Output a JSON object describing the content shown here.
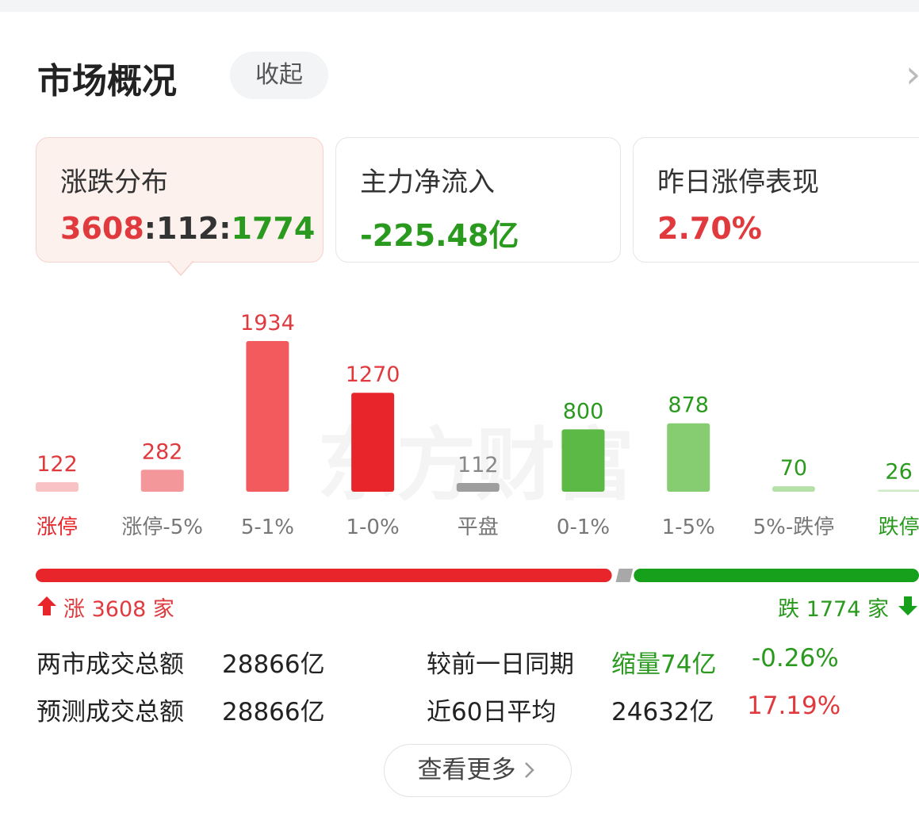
{
  "header": {
    "title": "市场概况",
    "button": "收起",
    "chevron": "›"
  },
  "cards": [
    {
      "title": "涨跌分布",
      "separator": ":"
    },
    {
      "title": "主力净流入",
      "value": "-225.48亿"
    },
    {
      "title": "昨日涨停表现",
      "value": "2.70%"
    }
  ],
  "watermark": "东方财富",
  "chart_data": {
    "type": "bar",
    "categories": [
      "涨停",
      "涨停-5%",
      "5-1%",
      "1-0%",
      "平盘",
      "0-1%",
      "1-5%",
      "5%-跌停",
      "跌停"
    ],
    "values": [
      122,
      282,
      1934,
      1270,
      112,
      800,
      878,
      70,
      26
    ],
    "colors": [
      "#f9c2c5",
      "#f4979b",
      "#f25a5e",
      "#e8252a",
      "#9e9e9e",
      "#5cb946",
      "#86cd72",
      "#b5e0a8",
      "#cdebc4"
    ],
    "value_label_colors": [
      "#e03a3e",
      "#e03a3e",
      "#e03a3e",
      "#e03a3e",
      "#888888",
      "#2a9a1e",
      "#2a9a1e",
      "#2a9a1e",
      "#2a9a1e"
    ],
    "category_label_colors": [
      "#e8252a",
      "#777777",
      "#777777",
      "#777777",
      "#777777",
      "#777777",
      "#777777",
      "#777777",
      "#2a9a1e"
    ]
  },
  "breadth": {
    "up": 3608,
    "flat": 112,
    "down": 1774,
    "up_color": "#e8252a",
    "flat_color": "#a8a8a8",
    "down_color": "#17a01c",
    "up_label": "涨 3608 家",
    "down_label": "跌 1774 家"
  },
  "stats": [
    {
      "label": "两市成交总额",
      "value": "28866亿",
      "compare_label": "较前一日同期",
      "compare_value": "缩量74亿",
      "compare_pct": "-0.26%"
    },
    {
      "label": "预测成交总额",
      "value": "28866亿",
      "compare_label": "近60日平均",
      "compare_value": "24632亿",
      "compare_pct": "17.19%"
    }
  ],
  "more_button": "查看更多"
}
